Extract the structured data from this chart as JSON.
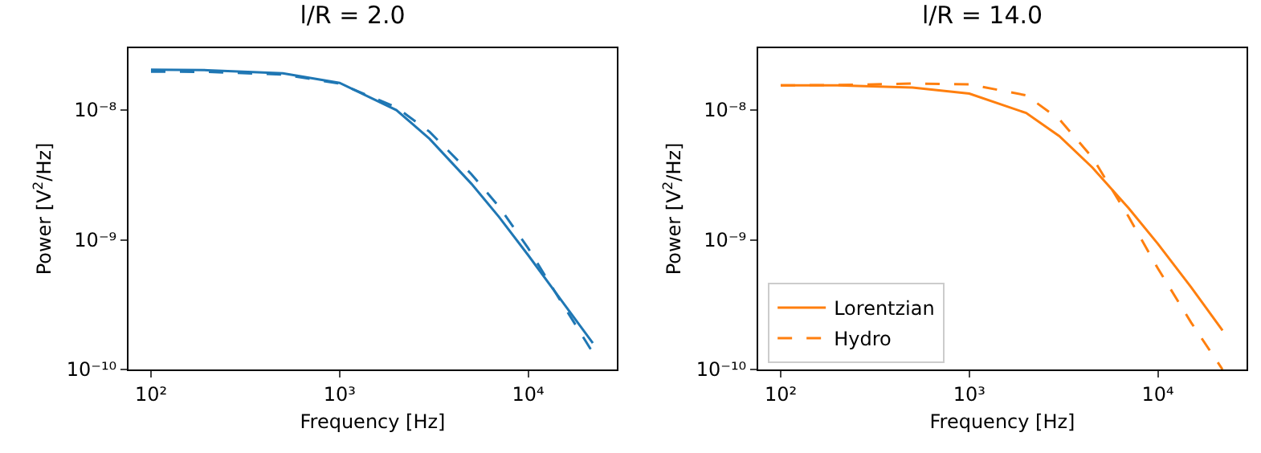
{
  "chart_data": [
    {
      "type": "line",
      "title": "l/R = 2.0",
      "xlabel": "Frequency [Hz]",
      "ylabel": "Power [V$^{2}$/Hz]",
      "log": "xy",
      "grid": false,
      "legend": false,
      "x": [
        100,
        200,
        500,
        1000,
        2000,
        3000,
        5000,
        7000,
        10000,
        15000,
        22000
      ],
      "xlim": [
        76,
        29500
      ],
      "xticks": [
        {
          "value": 100,
          "label": "10²"
        },
        {
          "value": 1000,
          "label": "10³"
        },
        {
          "value": 10000,
          "label": "10⁴"
        }
      ],
      "ylim": [
        1e-10,
        3e-08
      ],
      "yticks": [
        {
          "value": 1e-10,
          "label": "10⁻¹⁰"
        },
        {
          "value": 1e-09,
          "label": "10⁻⁹"
        },
        {
          "value": 1e-08,
          "label": "10⁻⁸"
        }
      ],
      "series": [
        {
          "color": "#1f77b4",
          "line_style": "solid",
          "values": [
            2.05e-08,
            2.03e-08,
            1.92e-08,
            1.62e-08,
            1e-08,
            6e-09,
            2.7e-09,
            1.5e-09,
            7.6e-10,
            3.4e-10,
            1.6e-10
          ]
        },
        {
          "color": "#1f77b4",
          "line_style": "dashed",
          "values": [
            1.98e-08,
            1.97e-08,
            1.88e-08,
            1.6e-08,
            1.05e-08,
            6.8e-09,
            3.2e-09,
            1.8e-09,
            8.6e-10,
            3.3e-10,
            1.35e-10
          ]
        }
      ]
    },
    {
      "type": "line",
      "title": "l/R = 14.0",
      "xlabel": "Frequency [Hz]",
      "ylabel": "Power [V$^{2}$/Hz]",
      "log": "xy",
      "grid": false,
      "legend": "bottom left",
      "x": [
        100,
        200,
        500,
        1000,
        2000,
        3000,
        4500,
        7000,
        10000,
        15000,
        22000
      ],
      "xlim": [
        76,
        29500
      ],
      "xticks": [
        {
          "value": 100,
          "label": "10²"
        },
        {
          "value": 1000,
          "label": "10³"
        },
        {
          "value": 10000,
          "label": "10⁴"
        }
      ],
      "ylim": [
        1e-10,
        3e-08
      ],
      "yticks": [
        {
          "value": 1e-10,
          "label": "10⁻¹⁰"
        },
        {
          "value": 1e-09,
          "label": "10⁻⁹"
        },
        {
          "value": 1e-08,
          "label": "10⁻⁸"
        }
      ],
      "series": [
        {
          "name": "Lorentzian",
          "color": "#ff7f0e",
          "line_style": "solid",
          "values": [
            1.55e-08,
            1.55e-08,
            1.49e-08,
            1.34e-08,
            9.5e-09,
            6.3e-09,
            3.6e-09,
            1.75e-09,
            9.3e-10,
            4.3e-10,
            2e-10
          ]
        },
        {
          "name": "Hydro",
          "color": "#ff7f0e",
          "line_style": "dashed",
          "values": [
            1.55e-08,
            1.56e-08,
            1.6e-08,
            1.58e-08,
            1.3e-08,
            8.5e-09,
            4.3e-09,
            1.5e-09,
            6e-10,
            2.3e-10,
            1e-10
          ]
        }
      ]
    }
  ]
}
